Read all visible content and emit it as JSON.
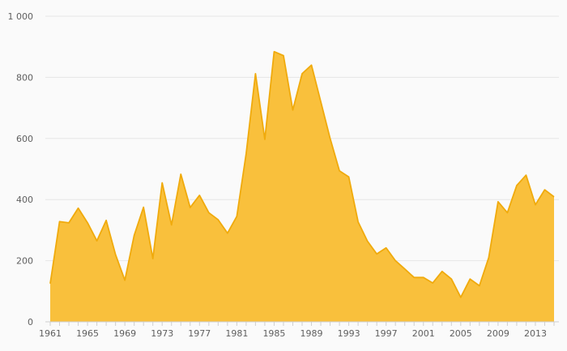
{
  "chart_data": {
    "type": "area",
    "title": "",
    "xlabel": "",
    "ylabel": "",
    "x": [
      1961,
      1962,
      1963,
      1964,
      1965,
      1966,
      1967,
      1968,
      1969,
      1970,
      1971,
      1972,
      1973,
      1974,
      1975,
      1976,
      1977,
      1978,
      1979,
      1980,
      1981,
      1982,
      1983,
      1984,
      1985,
      1986,
      1987,
      1988,
      1989,
      1990,
      1991,
      1992,
      1993,
      1994,
      1995,
      1996,
      1997,
      1998,
      1999,
      2000,
      2001,
      2002,
      2003,
      2004,
      2005,
      2006,
      2007,
      2008,
      2009,
      2010,
      2011,
      2012,
      2013,
      2014,
      2015
    ],
    "series": [
      {
        "values": [
          125,
          328,
          324,
          372,
          324,
          265,
          332,
          220,
          136,
          283,
          375,
          207,
          455,
          317,
          483,
          374,
          414,
          357,
          334,
          290,
          345,
          550,
          812,
          597,
          884,
          871,
          693,
          812,
          840,
          720,
          600,
          494,
          474,
          327,
          264,
          222,
          242,
          200,
          173,
          145,
          145,
          127,
          165,
          140,
          80,
          140,
          118,
          210,
          393,
          357,
          446,
          480,
          383,
          432,
          409
        ]
      }
    ],
    "ylim": [
      0,
      1000
    ],
    "y_ticks": [
      0,
      200,
      400,
      600,
      800,
      1000
    ],
    "y_tick_labels": [
      "0",
      "200",
      "400",
      "600",
      "800",
      "1 000"
    ],
    "x_tick_labels": [
      "1961",
      "1965",
      "1969",
      "1973",
      "1977",
      "1981",
      "1985",
      "1989",
      "1993",
      "1997",
      "2001",
      "2005",
      "2009",
      "2013"
    ],
    "grid": true,
    "legend": "none",
    "colors": {
      "fill": "#f9c03c",
      "line": "#f0aa0c",
      "grid": "#e6e6e6"
    }
  }
}
